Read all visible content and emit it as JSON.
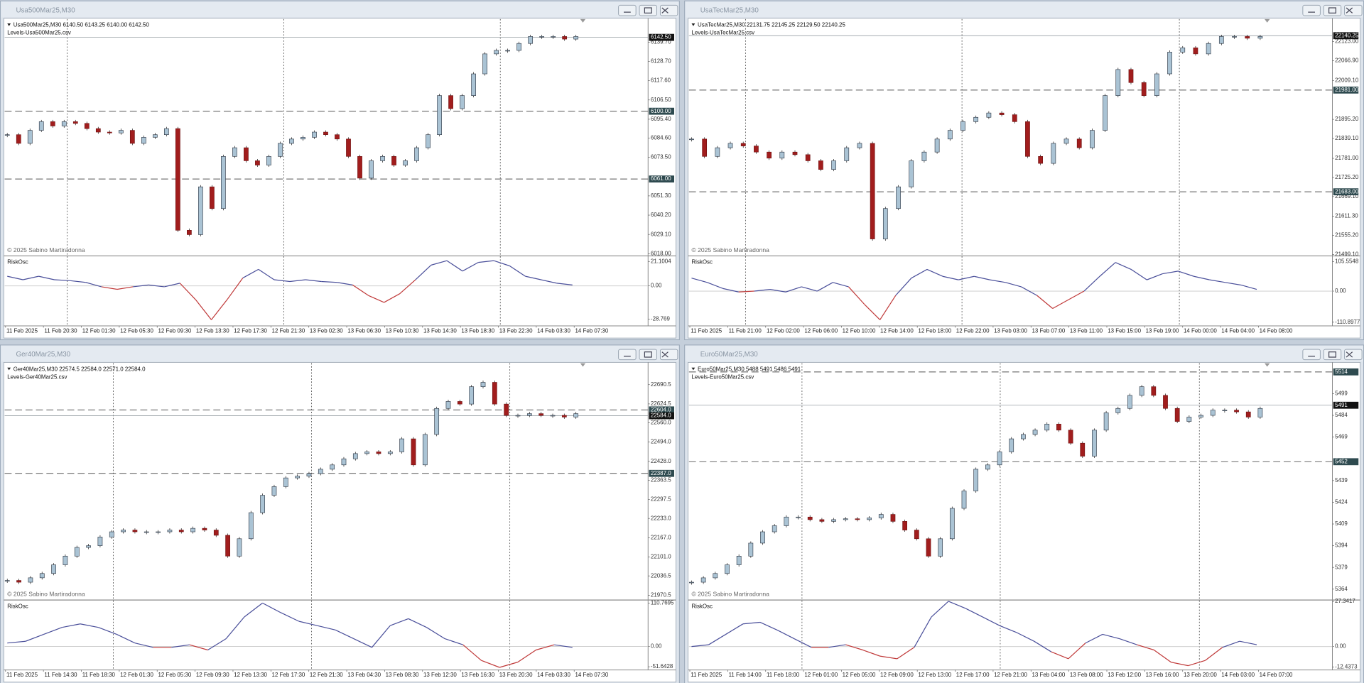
{
  "windows": [
    {
      "title": "Usa500Mar25,M30",
      "header": "Usa500Mar25,M30  6140.50 6143.25 6140.00 6142.50",
      "levels_file": "Levels-Usa500Mar25.csv",
      "copyright": "© 2025 Sabino Martiradonna",
      "indicator": "RiskOsc",
      "ylim": [
        6017.5,
        6153
      ],
      "price_ticks": [
        {
          "value": 6139.7,
          "label": "6139.70"
        },
        {
          "value": 6128.7,
          "label": "6128.70"
        },
        {
          "value": 6117.6,
          "label": "6117.60"
        },
        {
          "value": 6106.5,
          "label": "6106.50"
        },
        {
          "value": 6095.4,
          "label": "6095.40"
        },
        {
          "value": 6084.6,
          "label": "6084.60"
        },
        {
          "value": 6073.5,
          "label": "6073.50"
        },
        {
          "value": 6051.3,
          "label": "6051.30"
        },
        {
          "value": 6040.2,
          "label": "6040.20"
        },
        {
          "value": 6029.1,
          "label": "6029.10"
        },
        {
          "value": 6018,
          "label": "6018.00"
        }
      ],
      "levels": [
        {
          "value": 6100,
          "label": "6100.00"
        },
        {
          "value": 6061,
          "label": "6061.00"
        }
      ],
      "current": {
        "value": 6142.5,
        "label": "6142.50"
      },
      "closes": [
        6086.5,
        6081.5,
        6089,
        6094,
        6091.5,
        6094,
        6093,
        6090,
        6088,
        6087.5,
        6089,
        6081.5,
        6085,
        6086.5,
        6090,
        6031.5,
        6029,
        6056.5,
        6044,
        6074,
        6079,
        6071.5,
        6069,
        6074,
        6081.5,
        6084,
        6085,
        6088,
        6086.5,
        6084,
        6074,
        6061.5,
        6071.5,
        6074,
        6069,
        6071.5,
        6079,
        6086.5,
        6109,
        6101.5,
        6109,
        6121.5,
        6133,
        6135,
        6135,
        6139,
        6143,
        6143,
        6143,
        6141.5,
        6143
      ],
      "osc": {
        "ylim": [
          -34.6,
          24.8
        ],
        "ticks": [
          21.1004,
          {
            "value": 0,
            "label": "0.00"
          },
          -28.769
        ],
        "values": [
          8.3,
          5.3,
          8.3,
          5.3,
          4.5,
          3,
          -0.8,
          -3,
          -0.8,
          0.8,
          -0.8,
          2.3,
          -12,
          -29.3,
          -12,
          6.8,
          14.3,
          5.3,
          3.8,
          5.3,
          3.8,
          3,
          0.8,
          -8.3,
          -14.3,
          -6.8,
          5.3,
          18,
          21.8,
          12.8,
          20.3,
          21.8,
          17.3,
          8.3,
          5.3,
          2.3,
          0.8
        ]
      },
      "time_labels": [
        "11 Feb 2025",
        "11 Feb 20:30",
        "12 Feb 01:30",
        "12 Feb 05:30",
        "12 Feb 09:30",
        "12 Feb 13:30",
        "12 Feb 17:30",
        "12 Feb 21:30",
        "13 Feb 02:30",
        "13 Feb 06:30",
        "13 Feb 10:30",
        "13 Feb 14:30",
        "13 Feb 18:30",
        "13 Feb 22:30",
        "14 Feb 03:30",
        "14 Feb 07:30"
      ]
    },
    {
      "title": "UsaTecMar25,M30",
      "header": "UsaTecMar25,M30  22131.75 22145.25 22129.50 22140.25",
      "levels_file": "Levels-UsaTecMar25.csv",
      "copyright": "© 2025 Sabino Martiradonna",
      "indicator": "RiskOsc",
      "ylim": [
        21499.1,
        22188.8
      ],
      "price_ticks": [
        {
          "value": 22123,
          "label": "22123.00"
        },
        {
          "value": 22066.9,
          "label": "22066.90"
        },
        {
          "value": 22009.1,
          "label": "22009.10"
        },
        {
          "value": 21895.2,
          "label": "21895.20"
        },
        {
          "value": 21839.1,
          "label": "21839.10"
        },
        {
          "value": 21781,
          "label": "21781.00"
        },
        {
          "value": 21725.2,
          "label": "21725.20"
        },
        {
          "value": 21669.1,
          "label": "21669.10"
        },
        {
          "value": 21611.3,
          "label": "21611.30"
        },
        {
          "value": 21555.2,
          "label": "21555.20"
        },
        {
          "value": 21499.1,
          "label": "21499.10"
        }
      ],
      "levels": [
        {
          "value": 21981,
          "label": "21981.00"
        },
        {
          "value": 21683,
          "label": "21683.00"
        }
      ],
      "current": {
        "value": 22140.25,
        "label": "22140.25"
      },
      "closes": [
        21837.6,
        21786.7,
        21812.1,
        21824.9,
        21817.2,
        21799.4,
        21781.6,
        21799.4,
        21791.8,
        21773.9,
        21748.5,
        21773.9,
        21812.1,
        21824.9,
        21544.9,
        21634,
        21697.6,
        21773.9,
        21799.4,
        21837.6,
        21863,
        21888.5,
        21901.2,
        21913.9,
        21908.8,
        21888.5,
        21786.7,
        21766.3,
        21824.9,
        21837.6,
        21812.1,
        21863,
        21964.8,
        22041.2,
        22003,
        21964.8,
        22028.5,
        22092.1,
        22104.8,
        22087,
        22117.5,
        22137.9,
        22137.9,
        22132.8,
        22137.9
      ],
      "osc": {
        "ylim": [
          -124,
          121
        ],
        "ticks": [
          105.5548,
          {
            "value": 0,
            "label": "0.00"
          },
          -110.8977
        ],
        "values": [
          46.5,
          31,
          9.3,
          -3.1,
          0,
          6.2,
          -3.1,
          15.5,
          0,
          31,
          15.5,
          -46.5,
          -102.3,
          -15.5,
          46.5,
          77.5,
          52.7,
          40.3,
          52.7,
          40.3,
          31,
          15.5,
          -15.5,
          -62,
          -31,
          0,
          52.7,
          102.3,
          77.5,
          40.3,
          62,
          71.3,
          52.7,
          40.3,
          31,
          21.7,
          6.2
        ]
      },
      "time_labels": [
        "11 Feb 2025",
        "11 Feb 21:00",
        "12 Feb 02:00",
        "12 Feb 06:00",
        "12 Feb 10:00",
        "12 Feb 14:00",
        "12 Feb 18:00",
        "12 Feb 22:00",
        "13 Feb 03:00",
        "13 Feb 07:00",
        "13 Feb 11:00",
        "13 Feb 15:00",
        "13 Feb 19:00",
        "14 Feb 00:00",
        "14 Feb 04:00",
        "14 Feb 08:00"
      ]
    },
    {
      "title": "Ger40Mar25,M30",
      "header": "Ger40Mar25,M30  22574.5 22584.0 22571.0 22584.0",
      "levels_file": "Levels-Ger40Mar25.csv",
      "copyright": "© 2025 Sabino Martiradonna",
      "indicator": "RiskOsc",
      "ylim": [
        21958.6,
        22763.5
      ],
      "price_ticks": [
        {
          "value": 22690.5,
          "label": "22690.5"
        },
        {
          "value": 22624.5,
          "label": "22624.5"
        },
        {
          "value": 22560,
          "label": "22560.0"
        },
        {
          "value": 22494,
          "label": "22494.0"
        },
        {
          "value": 22428,
          "label": "22428.0"
        },
        {
          "value": 22363.5,
          "label": "22363.5"
        },
        {
          "value": 22297.5,
          "label": "22297.5"
        },
        {
          "value": 22233,
          "label": "22233.0"
        },
        {
          "value": 22167,
          "label": "22167.0"
        },
        {
          "value": 22101,
          "label": "22101.0"
        },
        {
          "value": 22036.5,
          "label": "22036.5"
        },
        {
          "value": 21970.5,
          "label": "21970.5"
        }
      ],
      "levels": [
        {
          "value": 22604,
          "label": "22604.0"
        },
        {
          "value": 22387,
          "label": "22387.0"
        }
      ],
      "current": {
        "value": 22584,
        "label": "22584.0"
      },
      "closes": [
        22021,
        22015,
        22030,
        22044.8,
        22074.5,
        22104.2,
        22133.9,
        22139.8,
        22169.5,
        22187.3,
        22193.3,
        22187.3,
        22187.3,
        22187.3,
        22193.3,
        22187.3,
        22199.2,
        22193.3,
        22175.4,
        22104.2,
        22163.6,
        22252.7,
        22312.1,
        22341.8,
        22371.5,
        22377.4,
        22386.3,
        22401.2,
        22416,
        22436.8,
        22454.6,
        22460.6,
        22454.6,
        22460.6,
        22505.1,
        22416,
        22520,
        22609,
        22632.8,
        22623.9,
        22683.3,
        22698.2,
        22623.9,
        22585.3,
        22585.3,
        22591.2,
        22585.3,
        22585.3,
        22579.4,
        22591.2
      ],
      "osc": {
        "ylim": [
          -59.8,
          115.2
        ],
        "ticks": [
          110.7695,
          {
            "value": 0,
            "label": "0.00"
          },
          -51.6428
        ],
        "values": [
          8.9,
          13.3,
          31,
          48.7,
          57.6,
          48.7,
          31,
          8.9,
          -2.2,
          -2.2,
          4.4,
          -8.9,
          19.9,
          75.3,
          110.8,
          86.4,
          64.2,
          53.2,
          42.1,
          19.9,
          -2.2,
          53.2,
          70.9,
          48.7,
          19.9,
          4.4,
          -35.4,
          -53.2,
          -39.9,
          -8.9,
          4.4,
          -2.2
        ]
      },
      "time_labels": [
        "11 Feb 2025",
        "11 Feb 14:30",
        "11 Feb 18:30",
        "12 Feb 01:30",
        "12 Feb 05:30",
        "12 Feb 09:30",
        "12 Feb 13:30",
        "12 Feb 17:30",
        "12 Feb 21:30",
        "13 Feb 04:30",
        "13 Feb 08:30",
        "13 Feb 12:30",
        "13 Feb 16:30",
        "13 Feb 20:30",
        "14 Feb 03:30",
        "14 Feb 07:30"
      ]
    },
    {
      "title": "Euro50Mar25,M30",
      "header": "Euro50Mar25,M30  5488 5491 5486 5491",
      "levels_file": "Levels-Euro50Mar25.csv",
      "copyright": "© 2025 Sabino Martiradonna",
      "indicator": "RiskOsc",
      "ylim": [
        5357.4,
        5520
      ],
      "price_ticks": [
        5499,
        5484,
        5469,
        5439,
        5424,
        5409,
        5394,
        5379,
        5364
      ],
      "levels": [
        5514,
        5452
      ],
      "current": 5491,
      "closes": [
        5368.8,
        5371.8,
        5374.8,
        5380.8,
        5386.8,
        5395.8,
        5403.6,
        5407.8,
        5413.8,
        5413.8,
        5412,
        5410.8,
        5412,
        5412.6,
        5412,
        5413.2,
        5415.6,
        5410.8,
        5404.8,
        5398.8,
        5386.8,
        5398.8,
        5419.8,
        5431.8,
        5446.8,
        5449.8,
        5458.8,
        5467.8,
        5470.8,
        5473.8,
        5478,
        5473.8,
        5464.8,
        5455.8,
        5473.8,
        5485.8,
        5488.8,
        5497.8,
        5503.8,
        5497.8,
        5488.8,
        5479.8,
        5482.8,
        5484,
        5487.6,
        5487.6,
        5486.4,
        5482.8,
        5488.8
      ],
      "osc": {
        "ylim": [
          -14.2,
          27.4
        ],
        "ticks": [
          27.3417,
          {
            "value": 0,
            "label": "0.00"
          },
          -12.4373
        ],
        "values": [
          0,
          1.1,
          7.4,
          13.7,
          14.7,
          10,
          4.7,
          -0.5,
          -0.5,
          1.1,
          -2.1,
          -5.8,
          -7.4,
          -0.5,
          17.9,
          27.4,
          23.1,
          17.9,
          12.6,
          8.4,
          3.2,
          -3.2,
          -7.4,
          2.1,
          7.4,
          4.7,
          1.1,
          -2.1,
          -9.5,
          -11.6,
          -8.4,
          -0.5,
          3.2,
          1.1
        ]
      },
      "time_labels": [
        "11 Feb 2025",
        "11 Feb 14:00",
        "11 Feb 18:00",
        "12 Feb 01:00",
        "12 Feb 05:00",
        "12 Feb 09:00",
        "12 Feb 13:00",
        "12 Feb 17:00",
        "12 Feb 21:00",
        "13 Feb 04:00",
        "13 Feb 08:00",
        "13 Feb 12:00",
        "13 Feb 16:00",
        "13 Feb 20:00",
        "14 Feb 03:00",
        "14 Feb 07:00"
      ]
    }
  ]
}
